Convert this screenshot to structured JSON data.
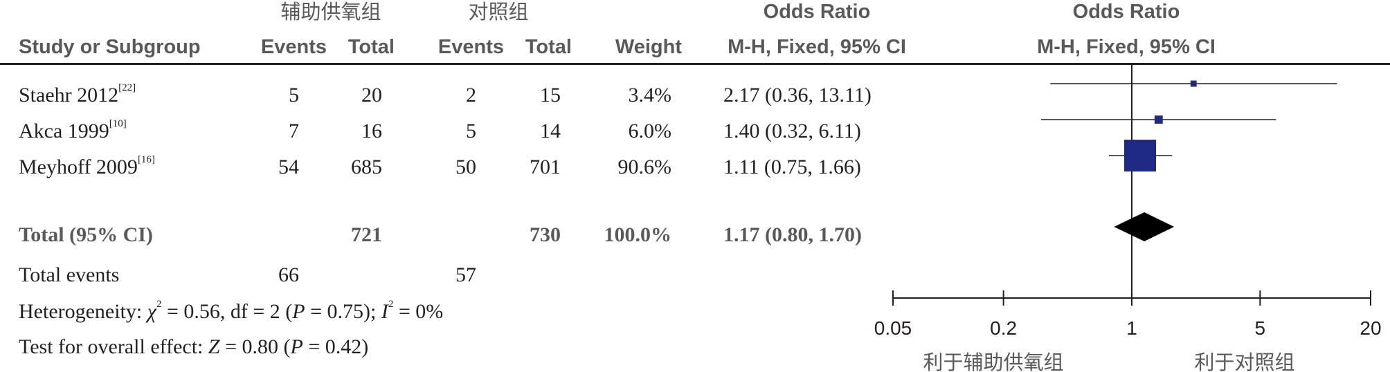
{
  "header": {
    "group_experimental": "辅助供氧组",
    "group_control": "对照组",
    "col_study": "Study or Subgroup",
    "col_events": "Events",
    "col_total": "Total",
    "col_weight": "Weight",
    "col_or_title": "Odds Ratio",
    "col_or_method": "M-H, Fixed, 95% CI",
    "plot_title": "Odds Ratio",
    "plot_method": "M-H, Fixed, 95% CI"
  },
  "studies": [
    {
      "name": "Staehr 2012",
      "ref": "[22]",
      "exp_events": "5",
      "exp_total": "20",
      "ctl_events": "2",
      "ctl_total": "15",
      "weight": "3.4%",
      "or_text": "2.17 (0.36, 13.11)"
    },
    {
      "name": "Akca 1999",
      "ref": "[10]",
      "exp_events": "7",
      "exp_total": "16",
      "ctl_events": "5",
      "ctl_total": "14",
      "weight": "6.0%",
      "or_text": "1.40 (0.32, 6.11)"
    },
    {
      "name": "Meyhoff 2009",
      "ref": "[16]",
      "exp_events": "54",
      "exp_total": "685",
      "ctl_events": "50",
      "ctl_total": "701",
      "weight": "90.6%",
      "or_text": "1.11 (0.75, 1.66)"
    }
  ],
  "total": {
    "label": "Total (95% CI)",
    "exp_total": "721",
    "ctl_total": "730",
    "weight": "100.0%",
    "or_text": "1.17 (0.80, 1.70)"
  },
  "total_events": {
    "label": "Total events",
    "exp": "66",
    "ctl": "57"
  },
  "heterogeneity": {
    "prefix": "Heterogeneity: ",
    "chi_sym": "χ",
    "chi_val": " = 0.56, df = 2 (",
    "p_sym": "P",
    "p_val": " = 0.75); ",
    "i_sym": "I",
    "i_val": " = 0%"
  },
  "overall": {
    "prefix": "Test for overall effect: ",
    "z_sym": "Z",
    "z_val": " = 0.80 (",
    "p_sym": "P",
    "p_val": " = 0.42)"
  },
  "axis": {
    "favours_left": "利于辅助供氧组",
    "favours_right": "利于对照组"
  },
  "chart_data": {
    "type": "forest",
    "scale": "log",
    "xlim": [
      0.05,
      20
    ],
    "ticks": [
      {
        "value": 0.05,
        "label": "0.05"
      },
      {
        "value": 0.2,
        "label": "0.2"
      },
      {
        "value": 1,
        "label": "1"
      },
      {
        "value": 5,
        "label": "5"
      },
      {
        "value": 20,
        "label": "20"
      }
    ],
    "studies": [
      {
        "name": "Staehr 2012",
        "or": 2.17,
        "lower": 0.36,
        "upper": 13.11,
        "weight": 3.4
      },
      {
        "name": "Akca 1999",
        "or": 1.4,
        "lower": 0.32,
        "upper": 6.11,
        "weight": 6.0
      },
      {
        "name": "Meyhoff 2009",
        "or": 1.11,
        "lower": 0.75,
        "upper": 1.66,
        "weight": 90.6
      }
    ],
    "pooled": {
      "or": 1.17,
      "lower": 0.8,
      "upper": 1.7
    },
    "colors": {
      "square": "#1f2a86",
      "diamond": "#000000",
      "line": "#231f20"
    }
  }
}
